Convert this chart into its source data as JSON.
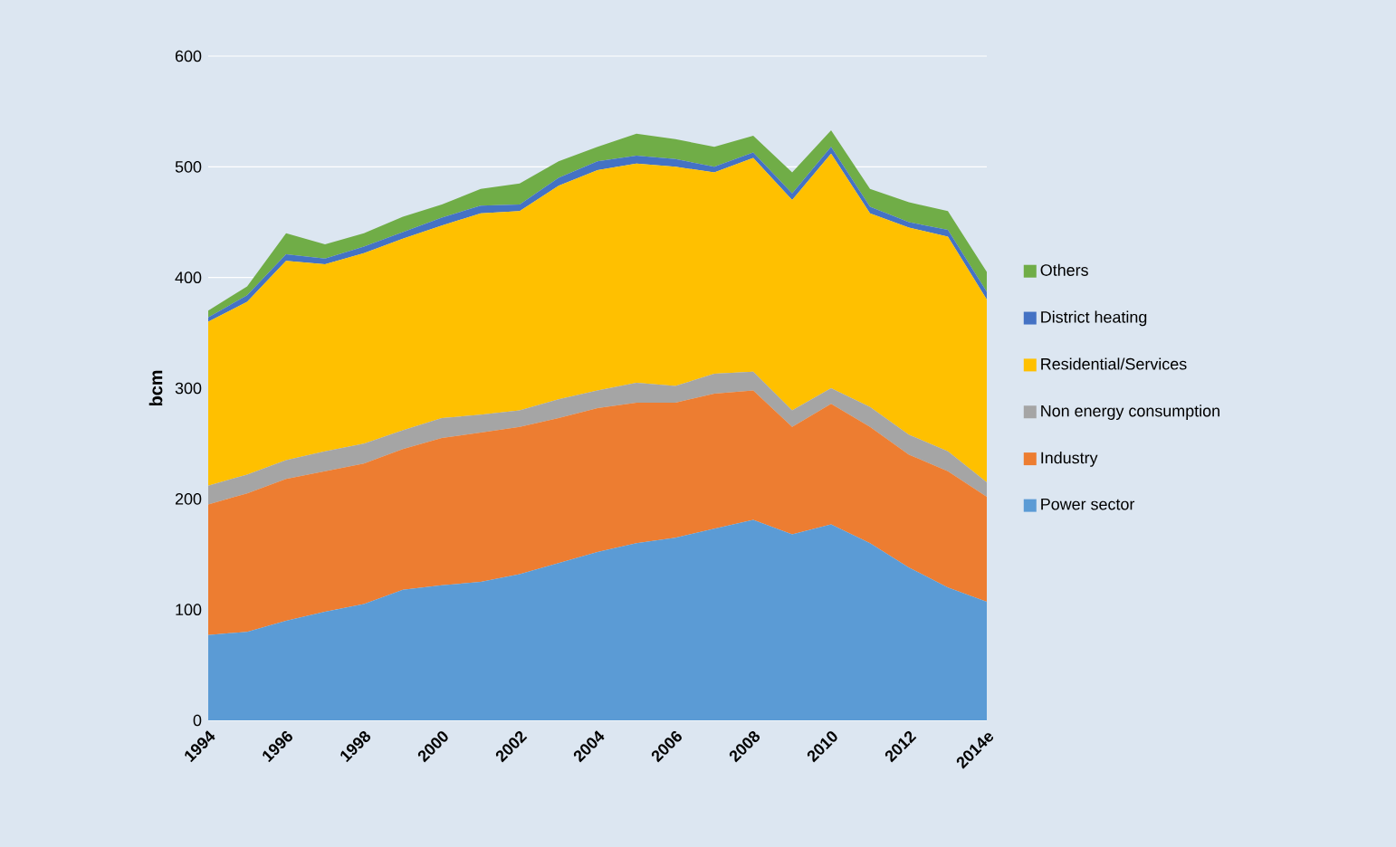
{
  "chart_data": {
    "type": "area",
    "stacked": true,
    "ylabel": "bcm",
    "categories": [
      "1994",
      null,
      "1996",
      null,
      "1998",
      null,
      "2000",
      null,
      "2002",
      null,
      "2004",
      null,
      "2006",
      null,
      "2008",
      null,
      "2010",
      null,
      "2012",
      null,
      "2014e"
    ],
    "series": [
      {
        "name": "Power sector",
        "color": "#5b9bd5",
        "values": [
          77,
          80,
          90,
          98,
          105,
          118,
          122,
          125,
          132,
          142,
          152,
          160,
          165,
          173,
          181,
          168,
          177,
          160,
          138,
          120,
          107
        ]
      },
      {
        "name": "Industry",
        "color": "#ed7d31",
        "values": [
          118,
          125,
          128,
          127,
          127,
          127,
          133,
          135,
          133,
          131,
          130,
          127,
          122,
          122,
          117,
          97,
          109,
          105,
          102,
          105,
          95
        ]
      },
      {
        "name": "Non energy consumption",
        "color": "#a5a5a5",
        "values": [
          17,
          17,
          17,
          18,
          18,
          17,
          18,
          16,
          15,
          17,
          16,
          18,
          15,
          18,
          17,
          15,
          14,
          18,
          18,
          18,
          13
        ]
      },
      {
        "name": "Residential/Services",
        "color": "#ffc000",
        "values": [
          148,
          156,
          180,
          169,
          172,
          173,
          174,
          182,
          180,
          193,
          199,
          198,
          198,
          182,
          193,
          190,
          212,
          175,
          187,
          194,
          165
        ]
      },
      {
        "name": "District heating",
        "color": "#4472c4",
        "values": [
          4,
          6,
          6,
          5,
          6,
          6,
          7,
          7,
          6,
          7,
          8,
          7,
          7,
          5,
          5,
          6,
          6,
          6,
          5,
          6,
          7
        ]
      },
      {
        "name": "Others",
        "color": "#70ad47",
        "values": [
          6,
          8,
          19,
          13,
          12,
          14,
          12,
          15,
          19,
          15,
          13,
          20,
          18,
          18,
          15,
          19,
          15,
          16,
          18,
          17,
          18
        ]
      }
    ],
    "ylim": [
      0,
      600
    ],
    "yticks": [
      0,
      100,
      200,
      300,
      400,
      500,
      600
    ],
    "grid": "y",
    "legend": "right"
  }
}
